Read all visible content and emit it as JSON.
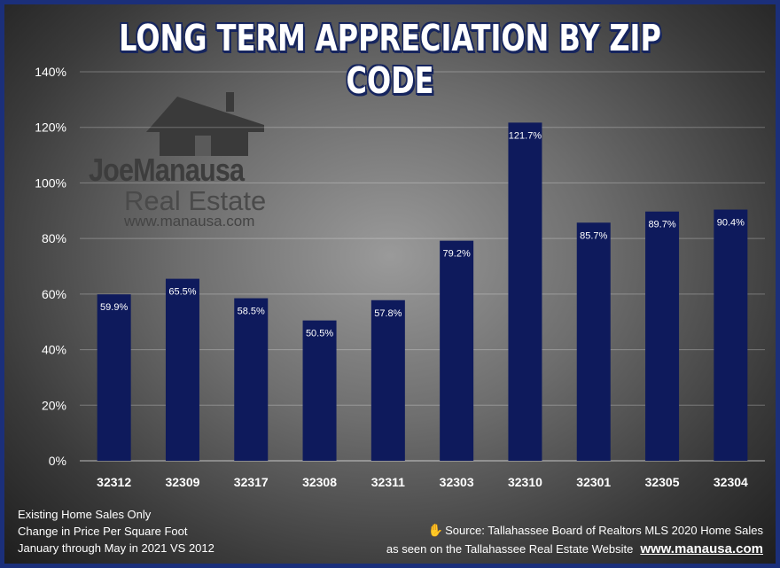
{
  "chart_data": {
    "type": "bar",
    "title": "LONG TERM APPRECIATION BY ZIP CODE",
    "categories": [
      "32312",
      "32309",
      "32317",
      "32308",
      "32311",
      "32303",
      "32310",
      "32301",
      "32305",
      "32304"
    ],
    "values": [
      59.9,
      65.5,
      58.5,
      50.5,
      57.8,
      79.2,
      121.7,
      85.7,
      89.7,
      90.4
    ],
    "value_labels": [
      "59.9%",
      "65.5%",
      "58.5%",
      "50.5%",
      "57.8%",
      "79.2%",
      "121.7%",
      "85.7%",
      "89.7%",
      "90.4%"
    ],
    "ylim": [
      0,
      140
    ],
    "yticks": [
      0,
      20,
      40,
      60,
      80,
      100,
      120,
      140
    ],
    "ytick_labels": [
      "0%",
      "20%",
      "40%",
      "60%",
      "80%",
      "100%",
      "120%",
      "140%"
    ],
    "grid": true,
    "bar_color": "#0e1a5c"
  },
  "logo": {
    "name": "JoeManausa",
    "subtitle": "Real Estate",
    "url": "www.manausa.com"
  },
  "notes": [
    "Existing Home Sales Only",
    "Change in Price Per Square Foot",
    "January through May in 2021 VS 2012"
  ],
  "source": {
    "icon": "hand-icon",
    "line1": "Source: Tallahassee Board of Realtors MLS 2020 Home Sales",
    "line2": "as seen on the Tallahassee Real Estate Website",
    "url": "www.manausa.com"
  },
  "colors": {
    "frame": "#1b2f7a",
    "title_outline": "#16255e"
  }
}
